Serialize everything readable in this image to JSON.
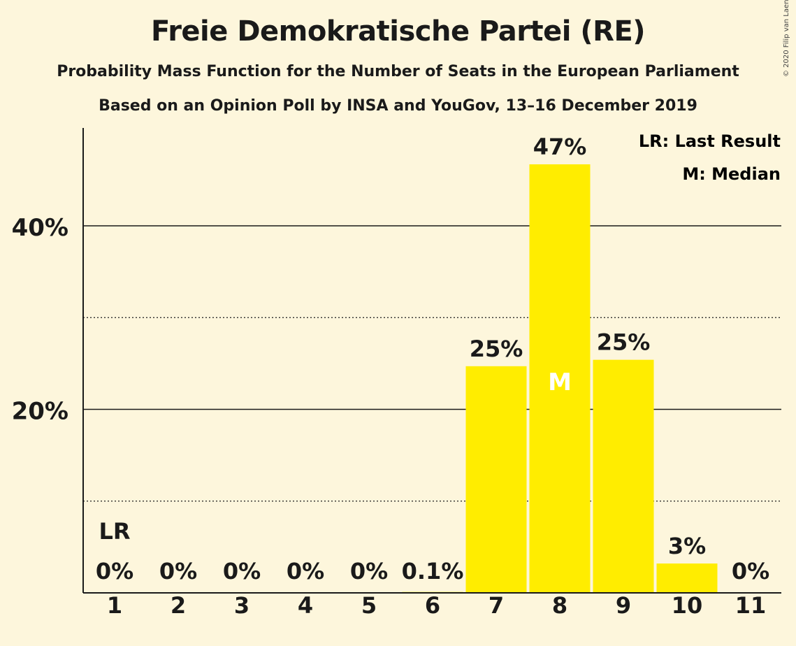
{
  "header": {
    "title": "Freie Demokratische Partei (RE)",
    "subtitle": "Probability Mass Function for the Number of Seats in the European Parliament",
    "subtitle2": "Based on an Opinion Poll by INSA and YouGov, 13–16 December 2019",
    "copyright": "© 2020 Filip van Laenen"
  },
  "legend": {
    "last_result": "LR: Last Result",
    "median": "M: Median"
  },
  "colors": {
    "background": "#FDF6DC",
    "bar": "#FFED00",
    "text": "#1a1a1a"
  },
  "chart_data": {
    "type": "bar",
    "categories": [
      "1",
      "2",
      "3",
      "4",
      "5",
      "6",
      "7",
      "8",
      "9",
      "10",
      "11"
    ],
    "values": [
      0,
      0,
      0,
      0,
      0,
      0.1,
      24.7,
      46.7,
      25.4,
      3.2,
      0
    ],
    "data_labels": [
      "0%",
      "0%",
      "0%",
      "0%",
      "0%",
      "0.1%",
      "25%",
      "47%",
      "25%",
      "3%",
      "0%"
    ],
    "y_ticks": [
      {
        "value": 20,
        "label": "20%"
      },
      {
        "value": 40,
        "label": "40%"
      }
    ],
    "minor_gridlines": [
      10,
      30
    ],
    "ylim": [
      0,
      50
    ],
    "last_result_category": "1",
    "last_result_label": "LR",
    "median_category": "8",
    "median_label": "M",
    "legend_position": "top-right"
  }
}
